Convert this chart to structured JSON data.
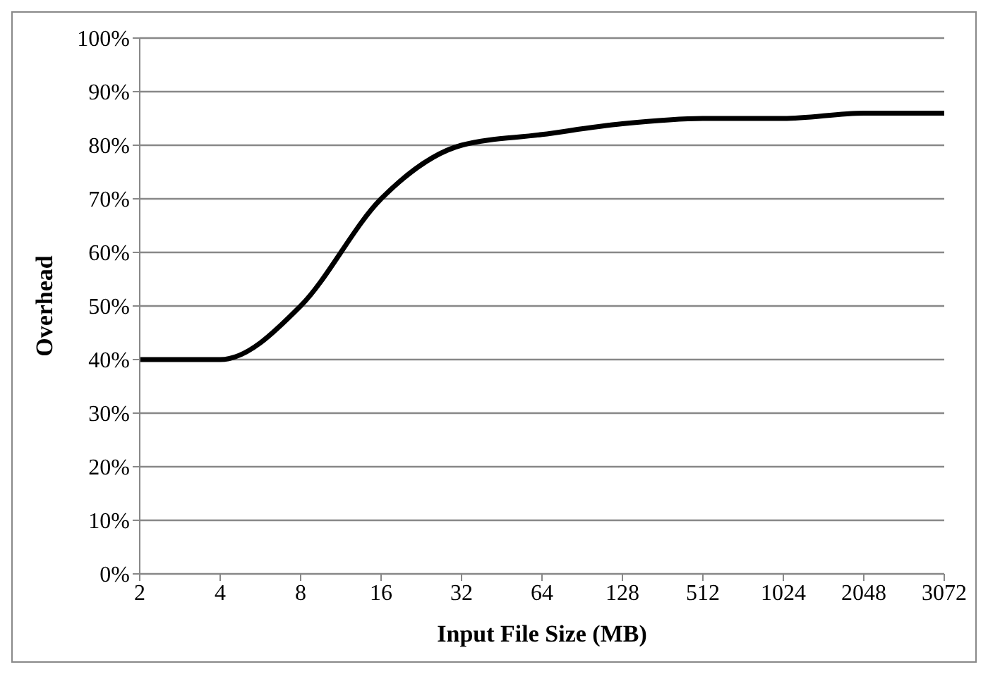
{
  "chart_data": {
    "type": "line",
    "xlabel": "Input File Size (MB)",
    "ylabel": "Overhead",
    "categories": [
      "2",
      "4",
      "8",
      "16",
      "32",
      "64",
      "128",
      "512",
      "1024",
      "2048",
      "3072"
    ],
    "series": [
      {
        "color": "#000000",
        "values": [
          40,
          40,
          50,
          70,
          80,
          82,
          84,
          85,
          85,
          86,
          86
        ]
      }
    ],
    "ylim": [
      0,
      100
    ],
    "yticks": [
      {
        "value": 0,
        "label": "0%"
      },
      {
        "value": 10,
        "label": "10%"
      },
      {
        "value": 20,
        "label": "20%"
      },
      {
        "value": 30,
        "label": "30%"
      },
      {
        "value": 40,
        "label": "40%"
      },
      {
        "value": 50,
        "label": "50%"
      },
      {
        "value": 60,
        "label": "60%"
      },
      {
        "value": 70,
        "label": "70%"
      },
      {
        "value": 80,
        "label": "80%"
      },
      {
        "value": 90,
        "label": "90%"
      },
      {
        "value": 100,
        "label": "100%"
      }
    ],
    "grid": "y",
    "legend": false,
    "marker": "none",
    "line_style": "solid"
  }
}
